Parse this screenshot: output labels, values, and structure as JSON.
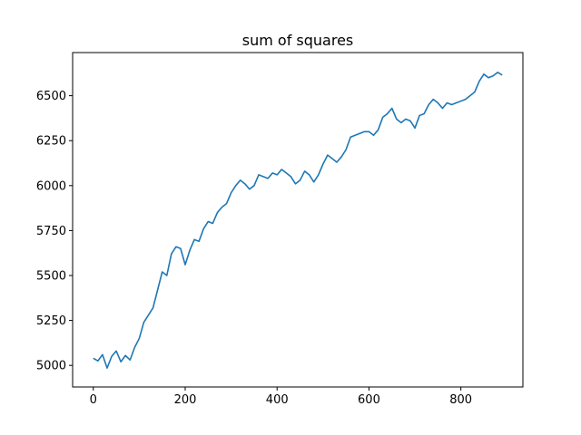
{
  "chart_data": {
    "type": "line",
    "title": "sum of squares",
    "xlabel": "",
    "ylabel": "",
    "xlim": [
      -45,
      935
    ],
    "ylim": [
      4880,
      6740
    ],
    "grid": false,
    "x_ticks": [
      0,
      200,
      400,
      600,
      800
    ],
    "y_ticks": [
      5000,
      5250,
      5500,
      5750,
      6000,
      6250,
      6500
    ],
    "color": "#1f77b4",
    "series": [
      {
        "x": [
          0,
          10,
          20,
          30,
          40,
          50,
          60,
          70,
          80,
          90,
          100,
          110,
          120,
          130,
          140,
          150,
          160,
          170,
          180,
          190,
          200,
          210,
          220,
          230,
          240,
          250,
          260,
          270,
          280,
          290,
          300,
          310,
          320,
          330,
          340,
          350,
          360,
          370,
          380,
          390,
          400,
          410,
          420,
          430,
          440,
          450,
          460,
          470,
          480,
          490,
          500,
          510,
          520,
          530,
          540,
          550,
          560,
          570,
          580,
          590,
          600,
          610,
          620,
          630,
          640,
          650,
          660,
          670,
          680,
          690,
          700,
          710,
          720,
          730,
          740,
          750,
          760,
          770,
          780,
          790,
          800,
          810,
          820,
          830,
          840,
          850,
          860,
          870,
          880,
          890
        ],
        "y": [
          5040,
          5025,
          5060,
          4985,
          5050,
          5080,
          5020,
          5055,
          5030,
          5100,
          5150,
          5240,
          5280,
          5320,
          5420,
          5520,
          5500,
          5620,
          5660,
          5650,
          5560,
          5640,
          5700,
          5690,
          5760,
          5800,
          5790,
          5850,
          5880,
          5900,
          5960,
          6000,
          6030,
          6010,
          5980,
          6000,
          6060,
          6050,
          6040,
          6070,
          6060,
          6090,
          6070,
          6050,
          6010,
          6030,
          6080,
          6060,
          6020,
          6060,
          6120,
          6170,
          6150,
          6130,
          6160,
          6200,
          6270,
          6280,
          6290,
          6300,
          6300,
          6280,
          6310,
          6380,
          6400,
          6430,
          6370,
          6350,
          6370,
          6360,
          6320,
          6390,
          6400,
          6450,
          6480,
          6460,
          6430,
          6460,
          6450,
          6460,
          6470,
          6480,
          6500,
          6520,
          6580,
          6620,
          6600,
          6610,
          6630,
          6615
        ]
      }
    ]
  }
}
